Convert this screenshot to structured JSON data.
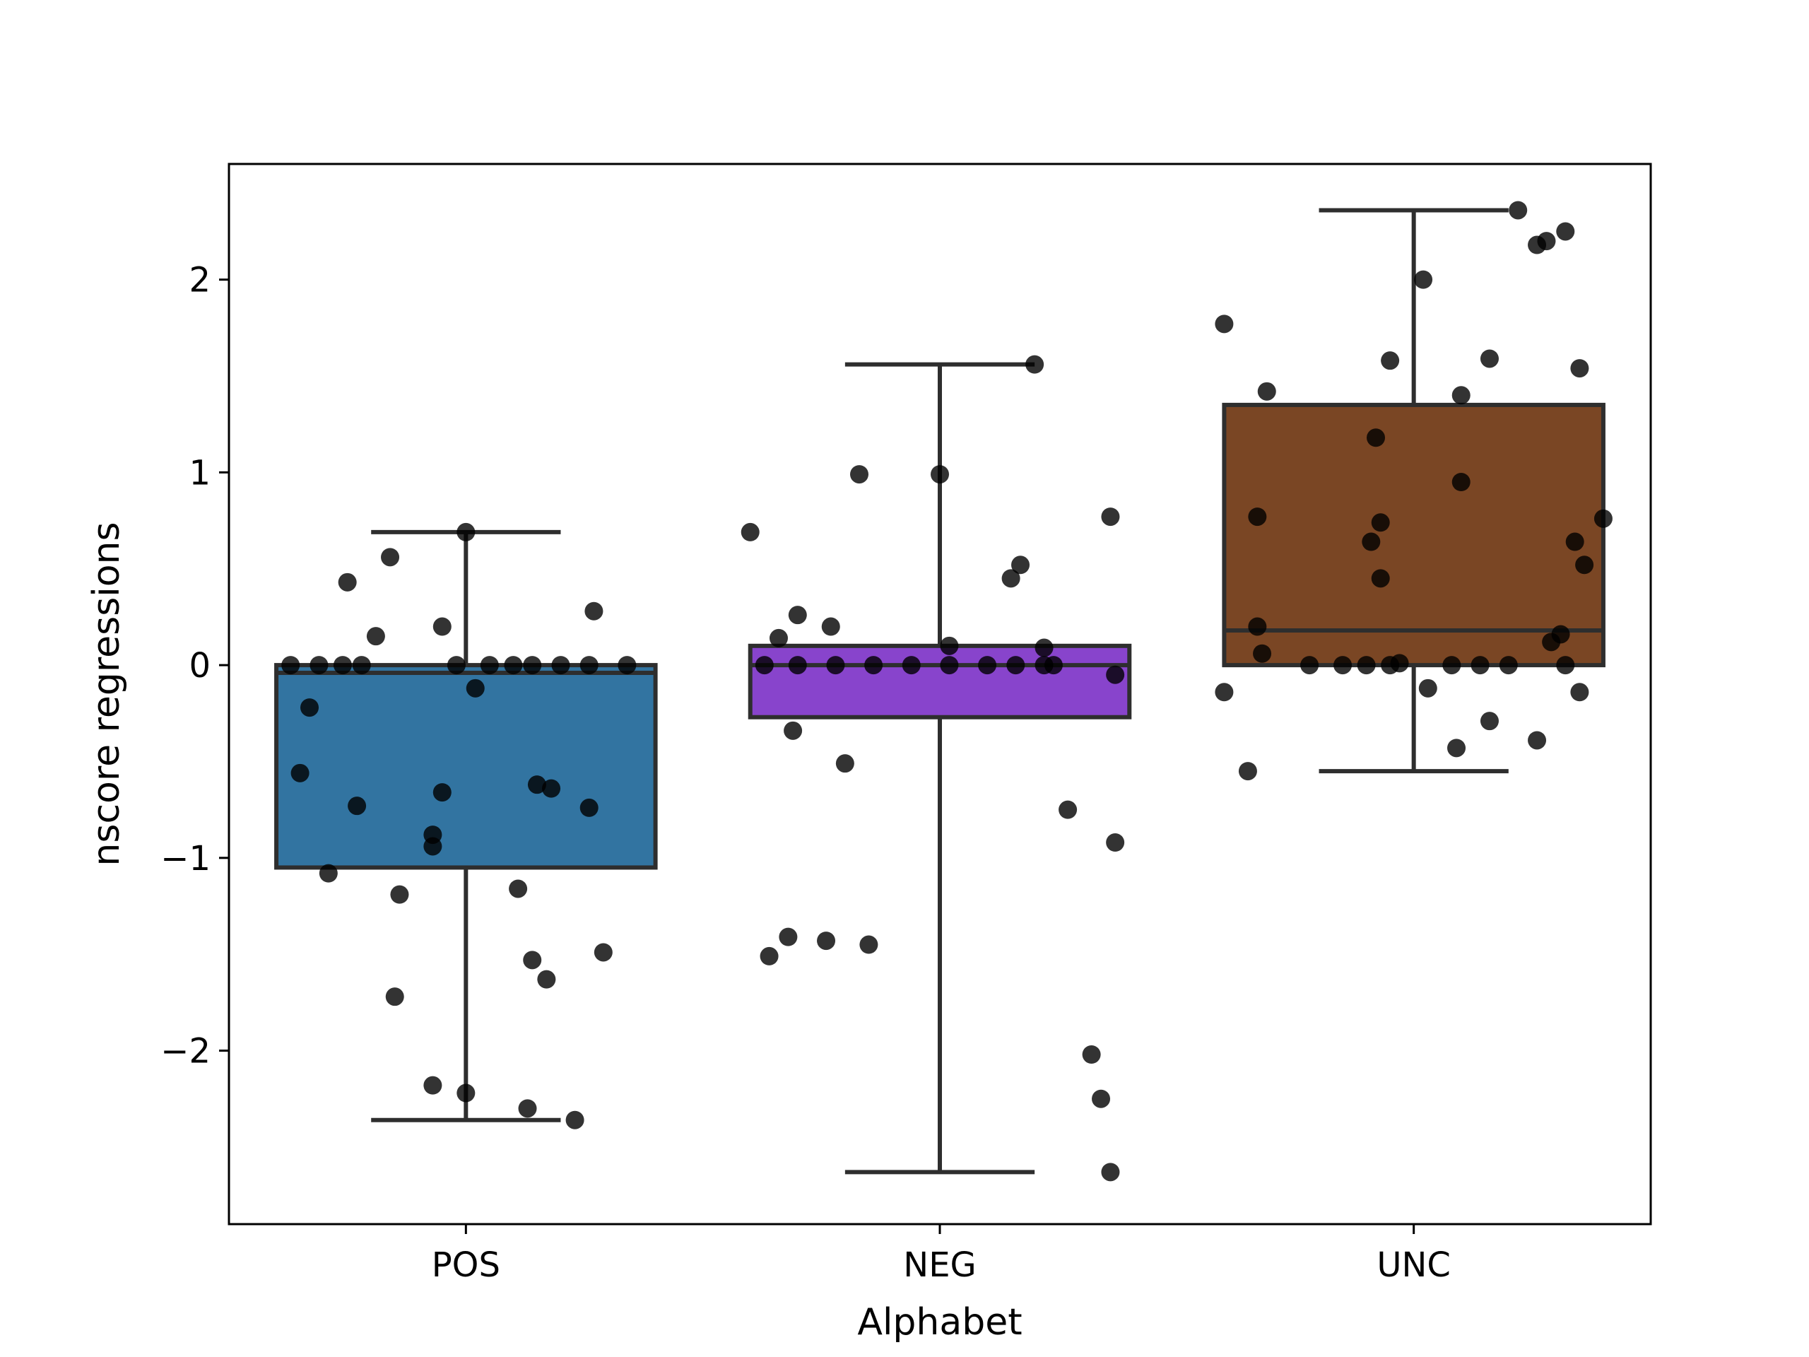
{
  "chart_data": {
    "type": "box",
    "xlabel": "Alphabet",
    "ylabel": "nscore regressions",
    "ylim": [
      -2.9,
      2.6
    ],
    "yticks": [
      -2,
      -1,
      0,
      1,
      2
    ],
    "ytick_labels": [
      "−2",
      "−1",
      "0",
      "1",
      "2"
    ],
    "grid": false,
    "categories": [
      "POS",
      "NEG",
      "UNC"
    ],
    "boxes": [
      {
        "category": "POS",
        "color": "#3274a1",
        "q1": -1.05,
        "median": -0.04,
        "q3": 0.0,
        "whisker_low": -2.36,
        "whisker_high": 0.69
      },
      {
        "category": "NEG",
        "color": "#8844cc",
        "q1": -0.27,
        "median": 0.0,
        "q3": 0.1,
        "whisker_low": -2.63,
        "whisker_high": 1.56
      },
      {
        "category": "UNC",
        "color": "#7a4624",
        "q1": 0.0,
        "median": 0.18,
        "q3": 1.35,
        "whisker_low": -0.55,
        "whisker_high": 2.36
      }
    ],
    "points": [
      {
        "category": "POS",
        "values": [
          0.69,
          0.56,
          0.43,
          0.28,
          0.2,
          0.15,
          0.0,
          0.0,
          0.0,
          0.0,
          0.0,
          0.0,
          0.0,
          0.0,
          0.0,
          0.0,
          0.0,
          -0.12,
          -0.22,
          -0.56,
          -0.62,
          -0.64,
          -0.66,
          -0.73,
          -0.74,
          -0.88,
          -0.94,
          -1.08,
          -1.16,
          -1.19,
          -1.49,
          -1.53,
          -1.63,
          -1.72,
          -2.18,
          -2.22,
          -2.3,
          -2.36
        ],
        "jitter": [
          0.0,
          -0.16,
          -0.25,
          0.27,
          -0.05,
          -0.19,
          -0.37,
          -0.31,
          -0.22,
          -0.26,
          -0.02,
          0.05,
          0.1,
          0.14,
          0.2,
          0.26,
          0.34,
          0.02,
          -0.33,
          -0.35,
          0.15,
          0.18,
          -0.05,
          -0.23,
          0.26,
          -0.07,
          -0.07,
          -0.29,
          0.11,
          -0.14,
          0.29,
          0.14,
          0.17,
          -0.15,
          -0.07,
          0.0,
          0.13,
          0.23
        ]
      },
      {
        "category": "NEG",
        "values": [
          1.56,
          0.99,
          0.99,
          0.77,
          0.69,
          0.52,
          0.45,
          0.26,
          0.2,
          0.14,
          0.1,
          0.09,
          0.0,
          0.0,
          0.0,
          0.0,
          0.0,
          0.0,
          0.0,
          0.0,
          0.0,
          0.0,
          -0.05,
          -0.34,
          -0.51,
          -0.75,
          -0.92,
          -1.41,
          -1.43,
          -1.45,
          -1.51,
          -2.02,
          -2.25,
          -2.63
        ],
        "jitter": [
          0.2,
          -0.17,
          0.0,
          0.36,
          -0.4,
          0.17,
          0.15,
          -0.3,
          -0.23,
          -0.34,
          0.02,
          0.22,
          -0.37,
          -0.3,
          -0.22,
          -0.14,
          -0.06,
          0.02,
          0.1,
          0.16,
          0.22,
          0.24,
          0.37,
          -0.31,
          -0.2,
          0.27,
          0.37,
          -0.32,
          -0.24,
          -0.15,
          -0.36,
          0.32,
          0.34,
          0.36
        ]
      },
      {
        "category": "UNC",
        "values": [
          2.36,
          2.25,
          2.2,
          2.18,
          2.0,
          1.77,
          1.59,
          1.58,
          1.54,
          1.42,
          1.4,
          1.18,
          0.95,
          0.77,
          0.76,
          0.74,
          0.64,
          0.64,
          0.52,
          0.45,
          0.2,
          0.16,
          0.12,
          0.06,
          0.01,
          0.0,
          0.0,
          0.0,
          0.0,
          0.0,
          0.0,
          0.0,
          0.0,
          -0.12,
          -0.14,
          -0.14,
          -0.29,
          -0.39,
          -0.43,
          -0.55
        ],
        "jitter": [
          0.22,
          0.32,
          0.28,
          0.26,
          0.02,
          -0.4,
          0.16,
          -0.05,
          0.35,
          -0.31,
          0.1,
          -0.08,
          0.1,
          -0.33,
          0.4,
          -0.07,
          -0.09,
          0.34,
          0.36,
          -0.07,
          -0.33,
          0.31,
          0.29,
          -0.32,
          -0.03,
          -0.22,
          -0.15,
          -0.1,
          -0.05,
          0.08,
          0.14,
          0.2,
          0.32,
          0.03,
          0.35,
          -0.4,
          0.16,
          0.26,
          0.09,
          -0.35
        ]
      }
    ]
  }
}
